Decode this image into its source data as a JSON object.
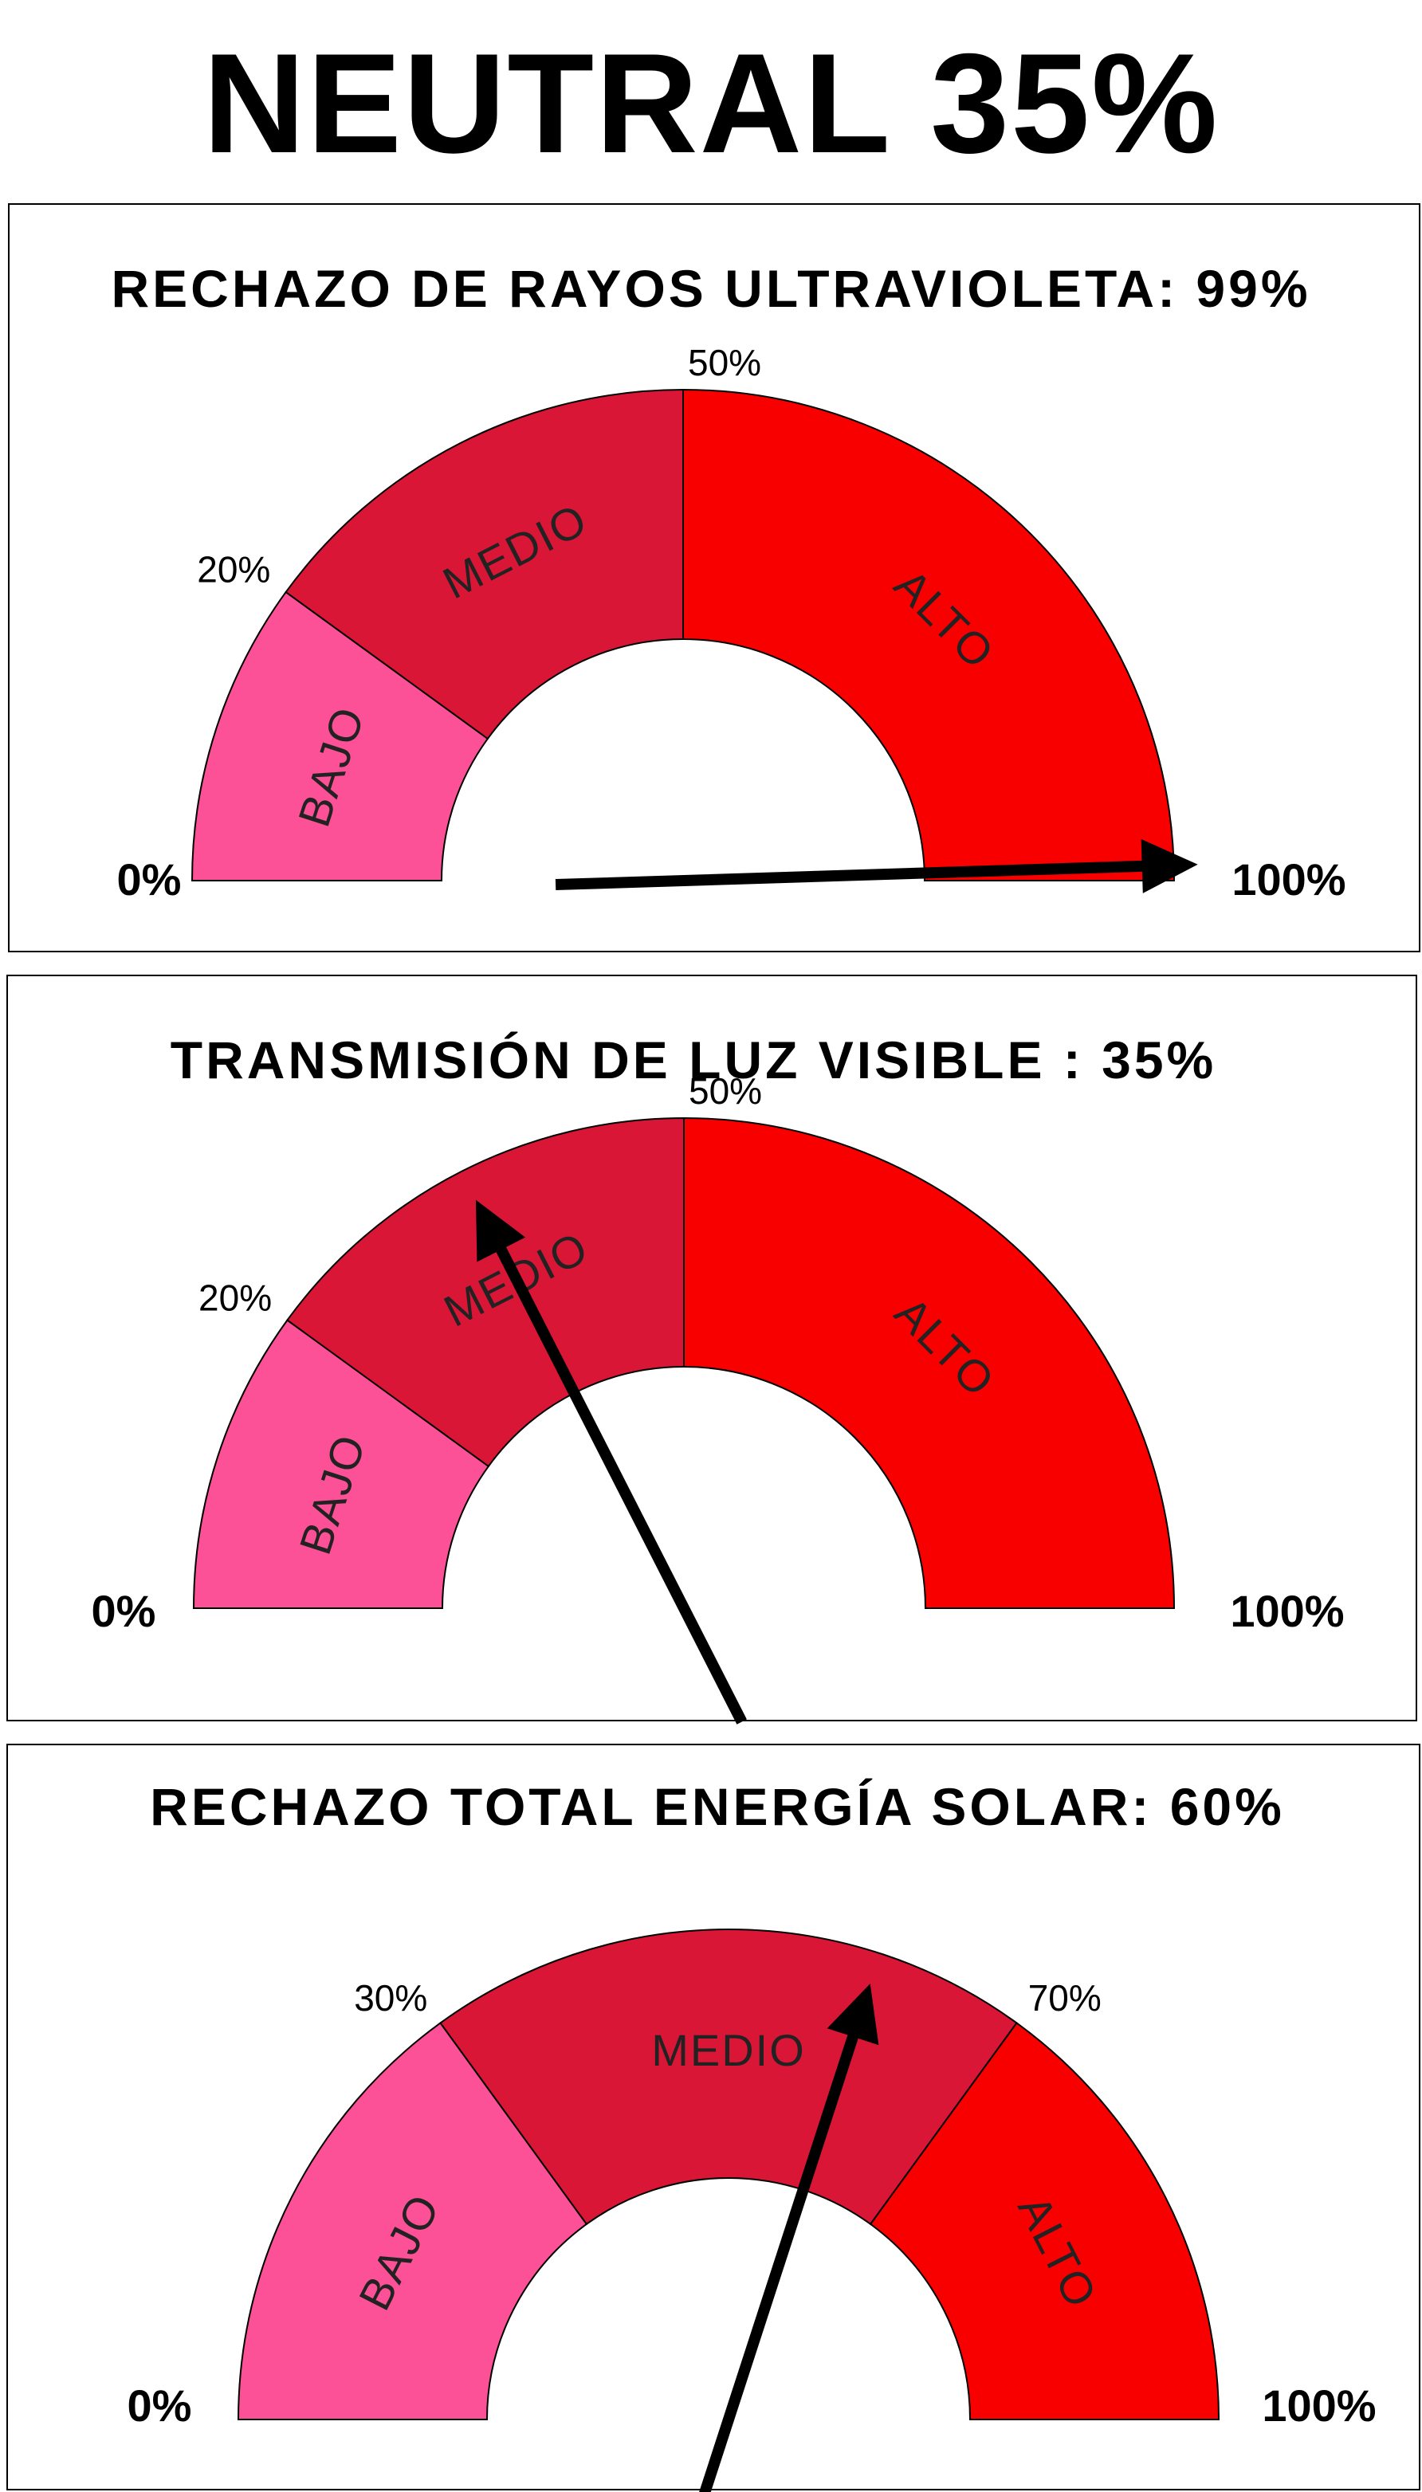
{
  "title": "NEUTRAL 35%",
  "colors": {
    "bajo": "#fc5097",
    "medio": "#d91636",
    "alto": "#f90000",
    "needle": "#000000"
  },
  "gauges": [
    {
      "title": "RECHAZO DE RAYOS ULTRAVIOLETA: 99%",
      "value": 99,
      "min_label": "0%",
      "max_label": "100%",
      "thresholds": [
        20,
        50
      ],
      "tick_labels": [
        "20%",
        "50%"
      ],
      "zones": [
        "BAJO",
        "MEDIO",
        "ALTO"
      ]
    },
    {
      "title": "TRANSMISIÓN DE LUZ VISIBLE : 35%",
      "value": 35,
      "min_label": "0%",
      "max_label": "100%",
      "thresholds": [
        20,
        50
      ],
      "tick_labels": [
        "20%",
        "50%"
      ],
      "zones": [
        "BAJO",
        "MEDIO",
        "ALTO"
      ]
    },
    {
      "title": "RECHAZO TOTAL ENERGÍA SOLAR: 60%",
      "value": 60,
      "min_label": "0%",
      "max_label": "100%",
      "thresholds": [
        30,
        70
      ],
      "tick_labels": [
        "30%",
        "70%"
      ],
      "zones": [
        "BAJO",
        "MEDIO",
        "ALTO"
      ]
    }
  ]
}
